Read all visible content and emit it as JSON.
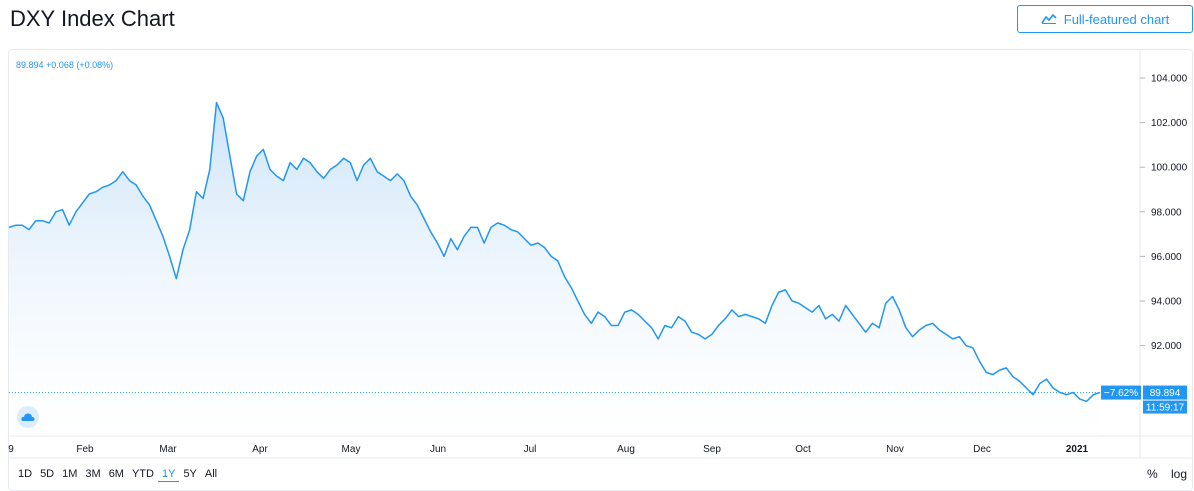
{
  "header": {
    "title": "DXY Index Chart",
    "full_chart_label": "Full-featured chart"
  },
  "legend": {
    "value": "89.894",
    "change": "+0.068 (+0.08%)"
  },
  "price_tag": {
    "pct": "−7.62%",
    "value": "89.894",
    "time": "11:59:17"
  },
  "ranges": [
    {
      "label": "1D"
    },
    {
      "label": "5D"
    },
    {
      "label": "1M"
    },
    {
      "label": "3M"
    },
    {
      "label": "6M"
    },
    {
      "label": "YTD"
    },
    {
      "label": "1Y",
      "active": true
    },
    {
      "label": "5Y"
    },
    {
      "label": "All"
    }
  ],
  "controls": {
    "percent": "%",
    "log": "log"
  },
  "colors": {
    "line": "#2196f3",
    "fill_top": "#c9e2f8",
    "tag": "#2196f3"
  },
  "chart_data": {
    "type": "area",
    "title": "DXY Index Chart",
    "x_tick_labels": [
      "9",
      "Feb",
      "Mar",
      "Apr",
      "May",
      "Jun",
      "Jul",
      "Aug",
      "Sep",
      "Oct",
      "Nov",
      "Dec",
      "2021"
    ],
    "y_tick_labels": [
      "104.000",
      "102.000",
      "100.000",
      "98.000",
      "96.000",
      "94.000",
      "92.000"
    ],
    "ylim": [
      89.0,
      105.0
    ],
    "grid": false,
    "last_value": 89.894,
    "series": [
      {
        "values": [
          97.3,
          97.4,
          97.4,
          97.2,
          97.6,
          97.6,
          97.5,
          98.0,
          98.1,
          97.4,
          98.0,
          98.4,
          98.8,
          98.9,
          99.1,
          99.2,
          99.4,
          99.8,
          99.4,
          99.2,
          98.7,
          98.3,
          97.6,
          96.9,
          96.0,
          95.0,
          96.3,
          97.2,
          98.9,
          98.6,
          99.9,
          102.9,
          102.2,
          100.5,
          98.8,
          98.5,
          99.8,
          100.5,
          100.8,
          99.9,
          99.6,
          99.4,
          100.2,
          99.9,
          100.4,
          100.2,
          99.8,
          99.5,
          99.9,
          100.1,
          100.4,
          100.2,
          99.4,
          100.1,
          100.4,
          99.8,
          99.6,
          99.4,
          99.7,
          99.4,
          98.7,
          98.3,
          97.7,
          97.1,
          96.6,
          96.0,
          96.8,
          96.3,
          96.9,
          97.3,
          97.3,
          96.6,
          97.3,
          97.5,
          97.4,
          97.2,
          97.1,
          96.8,
          96.5,
          96.6,
          96.4,
          96.0,
          95.8,
          95.1,
          94.6,
          94.0,
          93.4,
          93.0,
          93.5,
          93.3,
          92.9,
          92.9,
          93.5,
          93.6,
          93.4,
          93.1,
          92.8,
          92.3,
          92.9,
          92.8,
          93.3,
          93.1,
          92.6,
          92.5,
          92.3,
          92.5,
          92.9,
          93.2,
          93.6,
          93.3,
          93.4,
          93.3,
          93.2,
          93.0,
          93.8,
          94.4,
          94.5,
          94.0,
          93.9,
          93.7,
          93.5,
          93.8,
          93.2,
          93.4,
          93.1,
          93.8,
          93.4,
          93.0,
          92.6,
          93.0,
          92.8,
          93.9,
          94.2,
          93.6,
          92.8,
          92.4,
          92.7,
          92.9,
          93.0,
          92.7,
          92.5,
          92.3,
          92.4,
          92.0,
          91.9,
          91.3,
          90.8,
          90.7,
          90.9,
          91.0,
          90.6,
          90.4,
          90.1,
          89.8,
          90.3,
          90.5,
          90.1,
          89.9,
          89.8,
          89.9,
          89.6,
          89.5,
          89.8,
          89.9
        ]
      }
    ]
  }
}
